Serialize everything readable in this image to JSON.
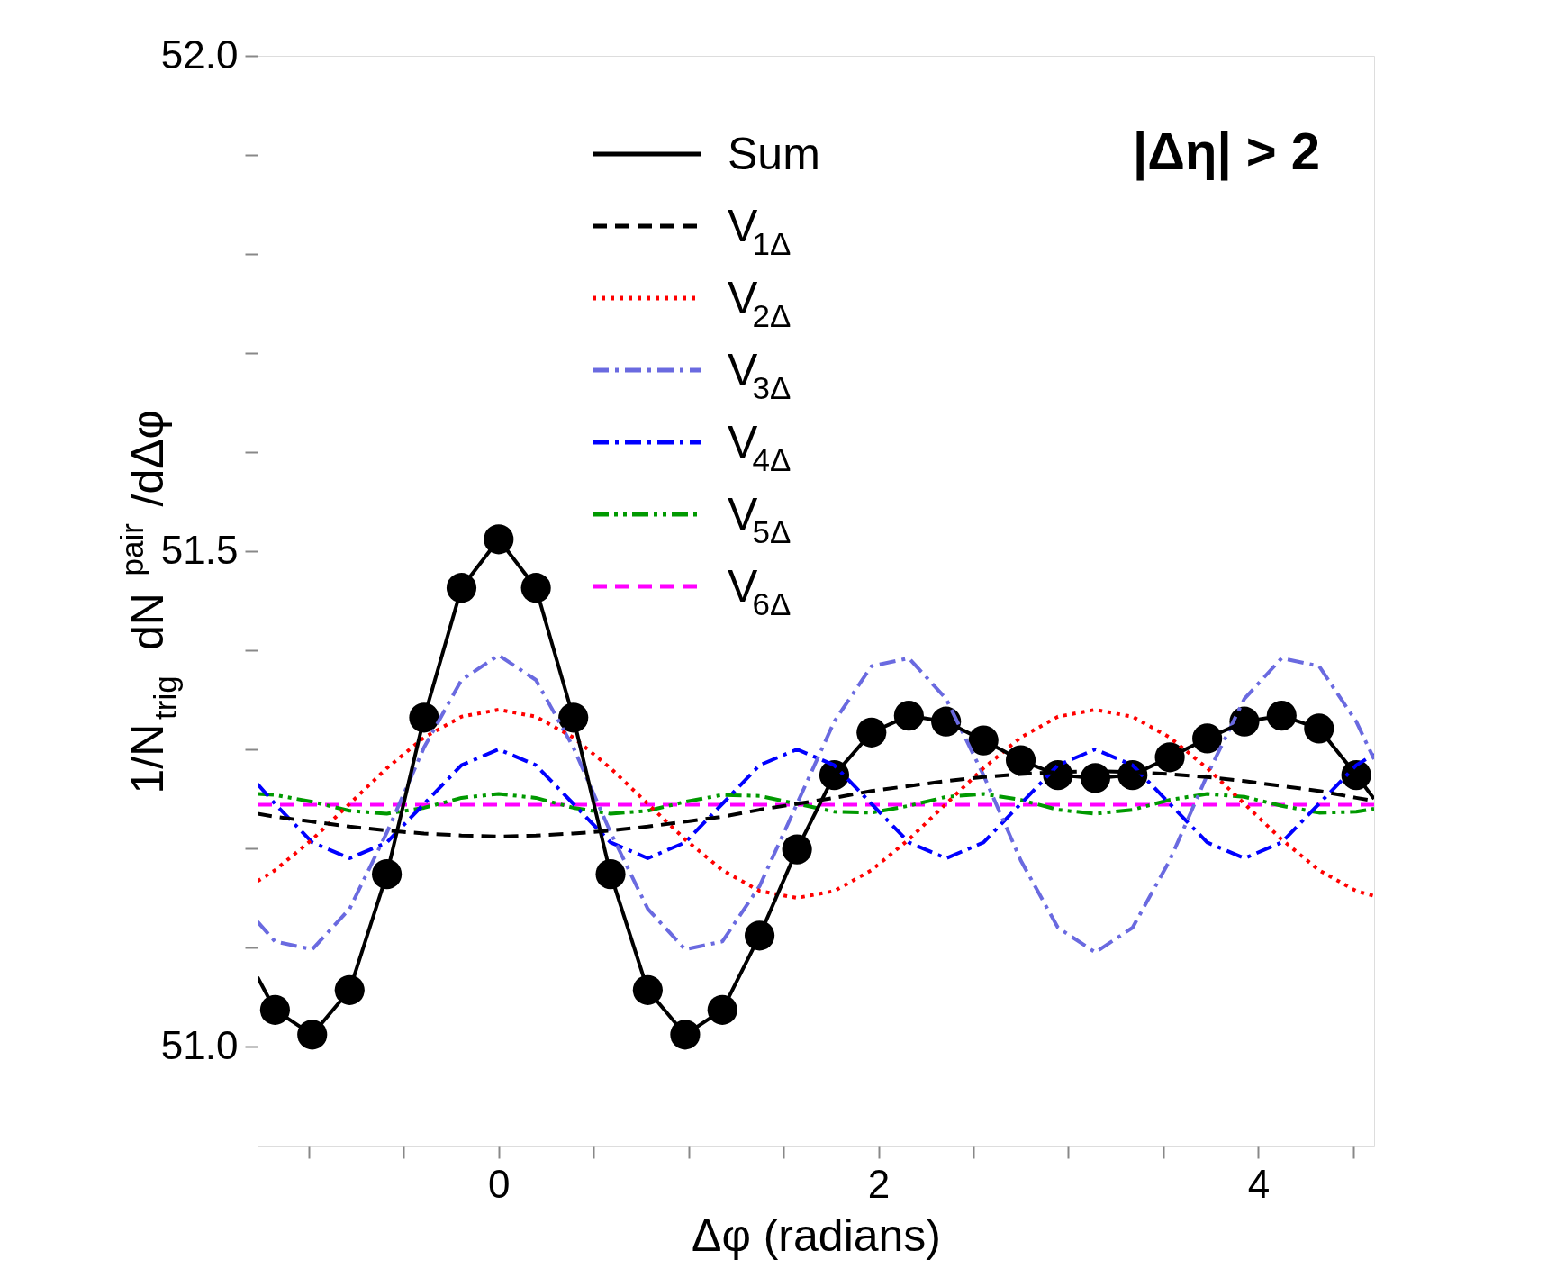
{
  "chart_data": {
    "type": "line",
    "xlabel": "Δφ (radians)",
    "ylabel": "1/N$_{trig}$ dN$^{pair}$/dΔφ",
    "annotations": [
      "|Δη| > 2"
    ],
    "x": [
      -1.27,
      -1.178,
      -0.982,
      -0.785,
      -0.589,
      -0.393,
      -0.196,
      0,
      0.196,
      0.393,
      0.589,
      0.785,
      0.982,
      1.178,
      1.374,
      1.571,
      1.767,
      1.963,
      2.16,
      2.356,
      2.553,
      2.749,
      2.945,
      3.142,
      3.338,
      3.534,
      3.731,
      3.927,
      4.123,
      4.32,
      4.516,
      4.61
    ],
    "series": [
      {
        "type": "scatter",
        "color": "#000000",
        "marker": "circle",
        "x": [
          -1.178,
          -0.982,
          -0.785,
          -0.589,
          -0.393,
          -0.196,
          0,
          0.196,
          0.393,
          0.589,
          0.785,
          0.982,
          1.178,
          1.374,
          1.571,
          1.767,
          1.963,
          2.16,
          2.356,
          2.553,
          2.749,
          2.945,
          3.142,
          3.338,
          3.534,
          3.731,
          3.927,
          4.123,
          4.32,
          4.516
        ],
        "values": [
          51.037,
          51.012,
          51.057,
          51.174,
          51.332,
          51.463,
          51.512,
          51.463,
          51.332,
          51.174,
          51.057,
          51.012,
          51.037,
          51.112,
          51.199,
          51.274,
          51.317,
          51.334,
          51.328,
          51.309,
          51.289,
          51.274,
          51.271,
          51.274,
          51.292,
          51.311,
          51.328,
          51.334,
          51.321,
          51.274
        ]
      },
      {
        "name": "Sum",
        "color": "#000000",
        "line_style": "solid",
        "values": [
          51.07,
          51.037,
          51.012,
          51.057,
          51.174,
          51.332,
          51.463,
          51.512,
          51.463,
          51.332,
          51.174,
          51.057,
          51.012,
          51.037,
          51.112,
          51.199,
          51.274,
          51.317,
          51.334,
          51.328,
          51.309,
          51.289,
          51.274,
          51.271,
          51.274,
          51.292,
          51.311,
          51.328,
          51.334,
          51.321,
          51.274,
          51.25
        ]
      },
      {
        "name": "V$_{1Δ}$",
        "color": "#000000",
        "line_style": "dashed",
        "values": [
          51.235,
          51.232,
          51.227,
          51.222,
          51.218,
          51.215,
          51.213,
          51.212,
          51.213,
          51.215,
          51.218,
          51.222,
          51.227,
          51.232,
          51.239,
          51.245,
          51.251,
          51.258,
          51.263,
          51.268,
          51.272,
          51.275,
          51.277,
          51.278,
          51.277,
          51.275,
          51.272,
          51.268,
          51.263,
          51.258,
          51.251,
          51.248
        ]
      },
      {
        "name": "V$_{2Δ}$",
        "color": "#ff0000",
        "line_style": "dotted",
        "values": [
          51.167,
          51.178,
          51.209,
          51.245,
          51.281,
          51.312,
          51.333,
          51.34,
          51.333,
          51.312,
          51.281,
          51.245,
          51.209,
          51.178,
          51.157,
          51.15,
          51.157,
          51.178,
          51.209,
          51.245,
          51.281,
          51.312,
          51.333,
          51.34,
          51.333,
          51.312,
          51.281,
          51.245,
          51.209,
          51.178,
          51.157,
          51.152
        ]
      },
      {
        "name": "V$_{3Δ}$",
        "color": "#6a6ae0",
        "line_style": "dashdot",
        "values": [
          51.126,
          51.106,
          51.098,
          51.139,
          51.216,
          51.302,
          51.37,
          51.395,
          51.37,
          51.302,
          51.216,
          51.139,
          51.098,
          51.106,
          51.162,
          51.245,
          51.328,
          51.384,
          51.392,
          51.351,
          51.274,
          51.188,
          51.12,
          51.095,
          51.12,
          51.188,
          51.274,
          51.351,
          51.392,
          51.384,
          51.328,
          51.29
        ]
      },
      {
        "name": "V$_{4Δ}$",
        "color": "#0000ff",
        "line_style": "dashdot",
        "values": [
          51.265,
          51.245,
          51.206,
          51.19,
          51.206,
          51.245,
          51.284,
          51.3,
          51.284,
          51.245,
          51.206,
          51.19,
          51.206,
          51.245,
          51.284,
          51.3,
          51.284,
          51.245,
          51.206,
          51.19,
          51.206,
          51.245,
          51.284,
          51.3,
          51.284,
          51.245,
          51.206,
          51.19,
          51.206,
          51.245,
          51.284,
          51.295
        ]
      },
      {
        "name": "V$_{5Δ}$",
        "color": "#009900",
        "line_style": "dashdotdot",
        "values": [
          51.255,
          51.254,
          51.247,
          51.238,
          51.235,
          51.241,
          51.251,
          51.255,
          51.251,
          51.241,
          51.235,
          51.238,
          51.247,
          51.254,
          51.253,
          51.245,
          51.237,
          51.236,
          51.243,
          51.252,
          51.255,
          51.249,
          51.239,
          51.235,
          51.239,
          51.249,
          51.255,
          51.252,
          51.243,
          51.236,
          51.237,
          51.24
        ]
      },
      {
        "name": "V$_{6Δ}$",
        "color": "#ff00ff",
        "line_style": "dashed",
        "values": [
          51.244,
          51.244,
          51.244,
          51.244,
          51.244,
          51.244,
          51.244,
          51.244,
          51.244,
          51.244,
          51.244,
          51.244,
          51.244,
          51.244,
          51.244,
          51.244,
          51.244,
          51.244,
          51.244,
          51.244,
          51.244,
          51.244,
          51.244,
          51.244,
          51.244,
          51.244,
          51.244,
          51.244,
          51.244,
          51.244,
          51.244,
          51.244
        ]
      }
    ],
    "xlim": [
      -1.27,
      4.61
    ],
    "xticks": [
      {
        "value": -1,
        "label": null
      },
      {
        "value": -0.5,
        "label": null
      },
      0,
      {
        "value": 0.5,
        "label": null
      },
      {
        "value": 1,
        "label": null
      },
      {
        "value": 1.5,
        "label": null
      },
      2,
      {
        "value": 2.5,
        "label": null
      },
      {
        "value": 3,
        "label": null
      },
      {
        "value": 3.5,
        "label": null
      },
      4,
      {
        "value": 4.5,
        "label": null
      }
    ],
    "ylim": [
      50.9,
      52.0
    ],
    "yticks": [
      {
        "value": 51.0,
        "label": "51.0"
      },
      {
        "value": 51.1,
        "label": null
      },
      {
        "value": 51.2,
        "label": null
      },
      {
        "value": 51.3,
        "label": null
      },
      {
        "value": 51.4,
        "label": null
      },
      {
        "value": 51.5,
        "label": "51.5"
      },
      {
        "value": 51.6,
        "label": null
      },
      {
        "value": 51.7,
        "label": null
      },
      {
        "value": 51.8,
        "label": null
      },
      {
        "value": 51.9,
        "label": null
      },
      {
        "value": 52.0,
        "label": "52.0"
      }
    ],
    "grid": false,
    "legend": "top"
  }
}
